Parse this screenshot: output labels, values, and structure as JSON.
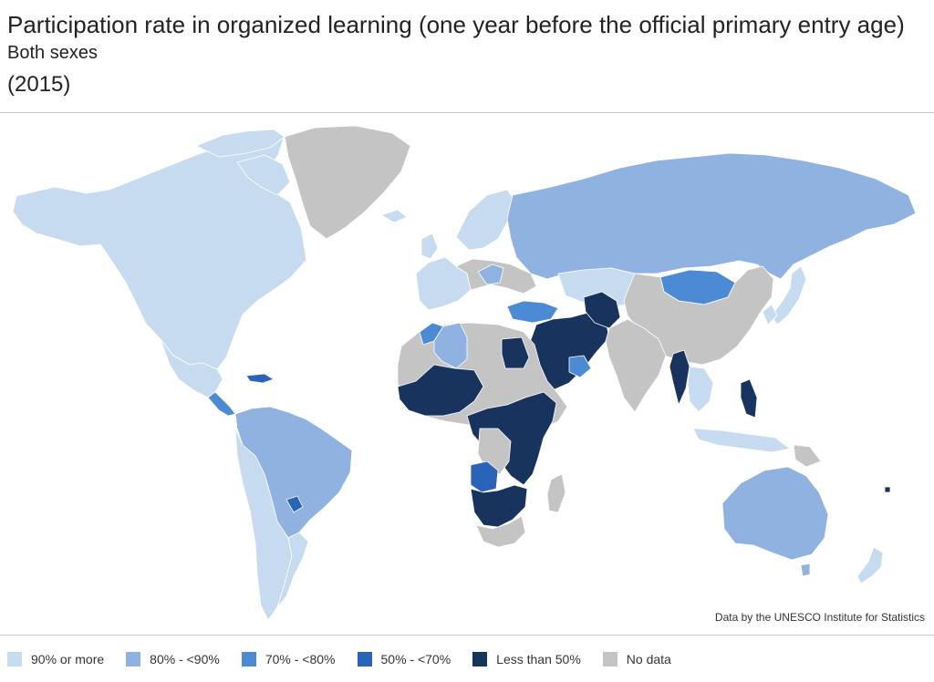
{
  "title": "Participation rate in organized learning (one year before the official primary entry age)",
  "subtitle": "Both sexes",
  "year": "(2015)",
  "credit": "Data by the UNESCO Institute for Statistics",
  "legend": [
    {
      "label": "90% or more",
      "color": "#c6dbef"
    },
    {
      "label": "80% - <90%",
      "color": "#8fb2e0"
    },
    {
      "label": "70% - <80%",
      "color": "#4c8ad4"
    },
    {
      "label": "50% - <70%",
      "color": "#2b63b8"
    },
    {
      "label": "Less than 50%",
      "color": "#17335e"
    },
    {
      "label": "No data",
      "color": "#c4c4c4"
    }
  ]
}
